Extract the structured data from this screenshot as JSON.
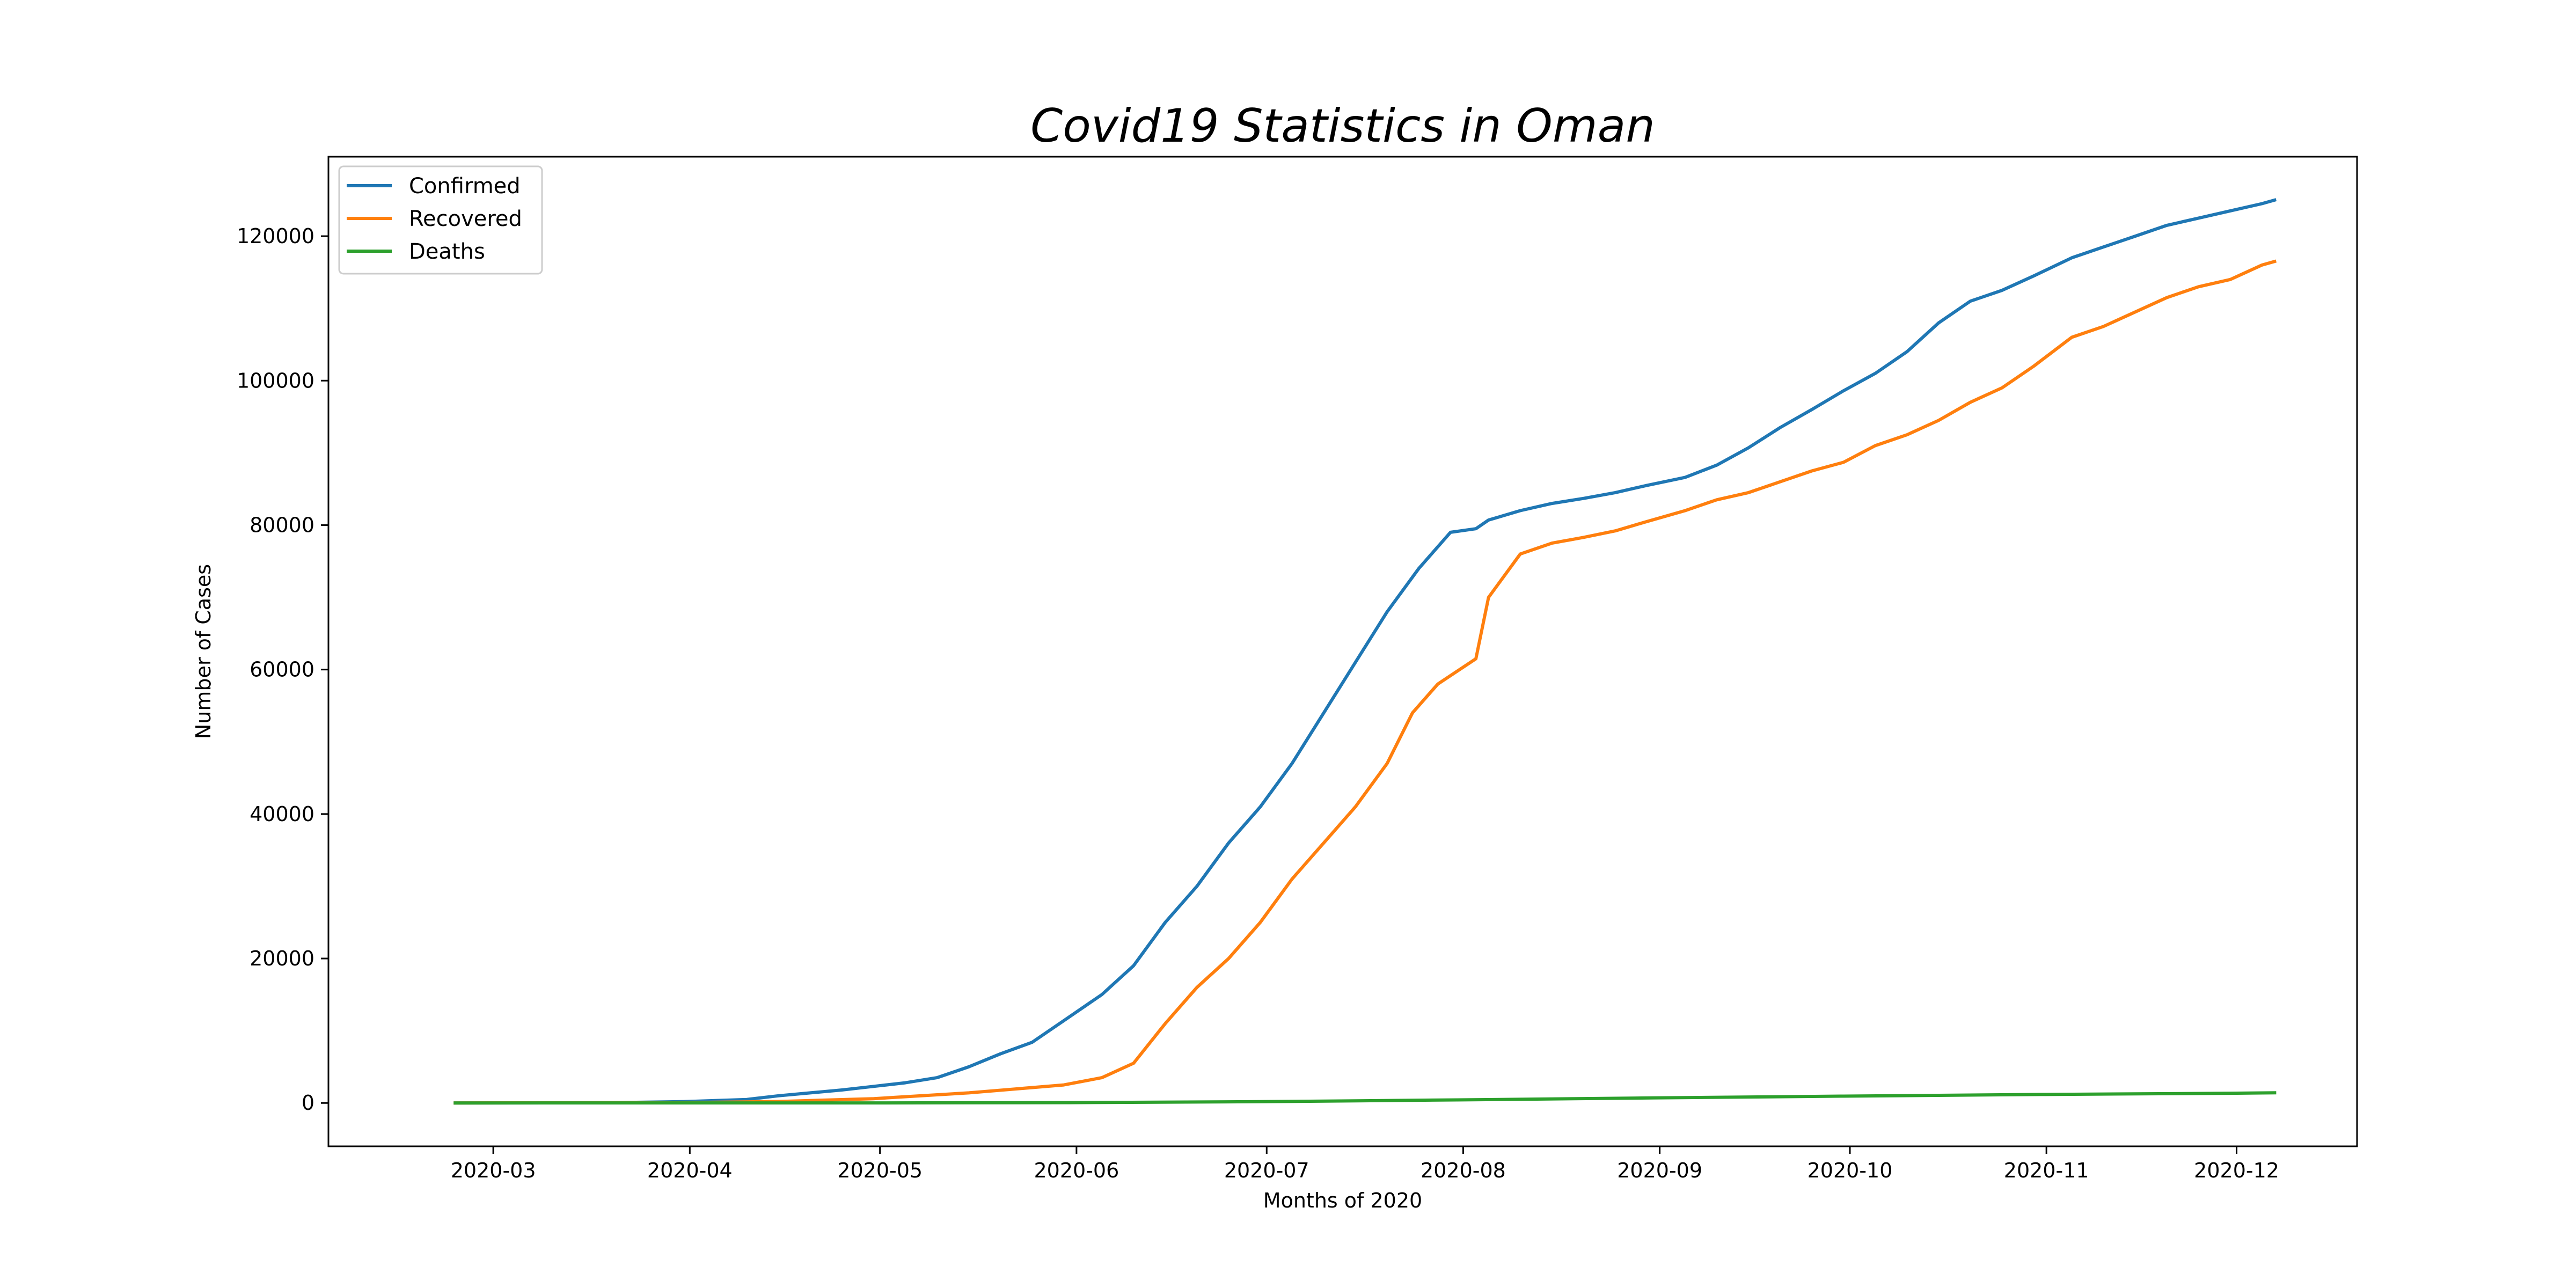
{
  "chart_data": {
    "type": "line",
    "title": "Covid19 Statistics in Oman",
    "xlabel": "Months of 2020",
    "ylabel": "Number of Cases",
    "x_range": [
      "2020-02-04",
      "2020-12-20"
    ],
    "ylim": [
      -6000,
      131000
    ],
    "y_ticks": [
      0,
      20000,
      40000,
      60000,
      80000,
      100000,
      120000
    ],
    "x_ticks": [
      "2020-03-01",
      "2020-04-01",
      "2020-05-01",
      "2020-06-01",
      "2020-07-01",
      "2020-08-01",
      "2020-09-01",
      "2020-10-01",
      "2020-11-01",
      "2020-12-01"
    ],
    "x_tick_labels": [
      "2020-03",
      "2020-04",
      "2020-05",
      "2020-06",
      "2020-07",
      "2020-08",
      "2020-09",
      "2020-10",
      "2020-11",
      "2020-12"
    ],
    "y_tick_labels": [
      "0",
      "20000",
      "40000",
      "60000",
      "80000",
      "100000",
      "120000"
    ],
    "grid": false,
    "legend_position": "top-left",
    "series": [
      {
        "name": "Confirmed",
        "color": "#1f77b4",
        "points": [
          [
            "2020-02-24",
            0
          ],
          [
            "2020-03-10",
            18
          ],
          [
            "2020-03-20",
            48
          ],
          [
            "2020-03-31",
            192
          ],
          [
            "2020-04-05",
            331
          ],
          [
            "2020-04-10",
            484
          ],
          [
            "2020-04-15",
            1000
          ],
          [
            "2020-04-20",
            1400
          ],
          [
            "2020-04-25",
            1800
          ],
          [
            "2020-04-30",
            2300
          ],
          [
            "2020-05-05",
            2800
          ],
          [
            "2020-05-10",
            3500
          ],
          [
            "2020-05-15",
            5000
          ],
          [
            "2020-05-20",
            6800
          ],
          [
            "2020-05-25",
            8400
          ],
          [
            "2020-05-30",
            11400
          ],
          [
            "2020-06-05",
            15000
          ],
          [
            "2020-06-10",
            19000
          ],
          [
            "2020-06-15",
            25000
          ],
          [
            "2020-06-20",
            30000
          ],
          [
            "2020-06-25",
            36000
          ],
          [
            "2020-06-30",
            41000
          ],
          [
            "2020-07-05",
            47000
          ],
          [
            "2020-07-10",
            54000
          ],
          [
            "2020-07-15",
            61000
          ],
          [
            "2020-07-20",
            68000
          ],
          [
            "2020-07-25",
            74000
          ],
          [
            "2020-07-30",
            79000
          ],
          [
            "2020-08-03",
            79500
          ],
          [
            "2020-08-05",
            80700
          ],
          [
            "2020-08-10",
            82000
          ],
          [
            "2020-08-15",
            83000
          ],
          [
            "2020-08-20",
            83700
          ],
          [
            "2020-08-25",
            84500
          ],
          [
            "2020-08-30",
            85500
          ],
          [
            "2020-09-05",
            86600
          ],
          [
            "2020-09-10",
            88300
          ],
          [
            "2020-09-15",
            90700
          ],
          [
            "2020-09-20",
            93500
          ],
          [
            "2020-09-25",
            96000
          ],
          [
            "2020-09-30",
            98600
          ],
          [
            "2020-10-05",
            101000
          ],
          [
            "2020-10-10",
            104000
          ],
          [
            "2020-10-15",
            108000
          ],
          [
            "2020-10-20",
            111000
          ],
          [
            "2020-10-25",
            112500
          ],
          [
            "2020-10-30",
            114500
          ],
          [
            "2020-11-05",
            117000
          ],
          [
            "2020-11-10",
            118500
          ],
          [
            "2020-11-15",
            120000
          ],
          [
            "2020-11-20",
            121500
          ],
          [
            "2020-11-25",
            122500
          ],
          [
            "2020-11-30",
            123500
          ],
          [
            "2020-12-05",
            124500
          ],
          [
            "2020-12-07",
            125000
          ]
        ]
      },
      {
        "name": "Recovered",
        "color": "#ff7f0e",
        "points": [
          [
            "2020-02-24",
            0
          ],
          [
            "2020-03-31",
            57
          ],
          [
            "2020-04-15",
            200
          ],
          [
            "2020-04-30",
            600
          ],
          [
            "2020-05-15",
            1400
          ],
          [
            "2020-05-30",
            2500
          ],
          [
            "2020-06-05",
            3500
          ],
          [
            "2020-06-10",
            5500
          ],
          [
            "2020-06-15",
            11000
          ],
          [
            "2020-06-20",
            16000
          ],
          [
            "2020-06-25",
            20000
          ],
          [
            "2020-06-30",
            25000
          ],
          [
            "2020-07-05",
            31000
          ],
          [
            "2020-07-10",
            36000
          ],
          [
            "2020-07-15",
            41000
          ],
          [
            "2020-07-20",
            47000
          ],
          [
            "2020-07-24",
            54000
          ],
          [
            "2020-07-28",
            58000
          ],
          [
            "2020-08-03",
            61500
          ],
          [
            "2020-08-05",
            70000
          ],
          [
            "2020-08-10",
            76000
          ],
          [
            "2020-08-15",
            77500
          ],
          [
            "2020-08-20",
            78300
          ],
          [
            "2020-08-25",
            79200
          ],
          [
            "2020-08-30",
            80500
          ],
          [
            "2020-09-05",
            82000
          ],
          [
            "2020-09-10",
            83500
          ],
          [
            "2020-09-15",
            84500
          ],
          [
            "2020-09-20",
            86000
          ],
          [
            "2020-09-25",
            87500
          ],
          [
            "2020-09-30",
            88700
          ],
          [
            "2020-10-05",
            91000
          ],
          [
            "2020-10-10",
            92500
          ],
          [
            "2020-10-15",
            94500
          ],
          [
            "2020-10-20",
            97000
          ],
          [
            "2020-10-25",
            99000
          ],
          [
            "2020-10-30",
            102000
          ],
          [
            "2020-11-05",
            106000
          ],
          [
            "2020-11-10",
            107500
          ],
          [
            "2020-11-15",
            109500
          ],
          [
            "2020-11-20",
            111500
          ],
          [
            "2020-11-25",
            113000
          ],
          [
            "2020-11-30",
            114000
          ],
          [
            "2020-12-05",
            116000
          ],
          [
            "2020-12-07",
            116500
          ]
        ]
      },
      {
        "name": "Deaths",
        "color": "#2ca02c",
        "points": [
          [
            "2020-02-24",
            0
          ],
          [
            "2020-04-30",
            12
          ],
          [
            "2020-05-31",
            50
          ],
          [
            "2020-06-30",
            180
          ],
          [
            "2020-07-31",
            430
          ],
          [
            "2020-08-31",
            700
          ],
          [
            "2020-09-30",
            950
          ],
          [
            "2020-10-31",
            1180
          ],
          [
            "2020-11-30",
            1350
          ],
          [
            "2020-12-07",
            1410
          ]
        ]
      }
    ]
  }
}
